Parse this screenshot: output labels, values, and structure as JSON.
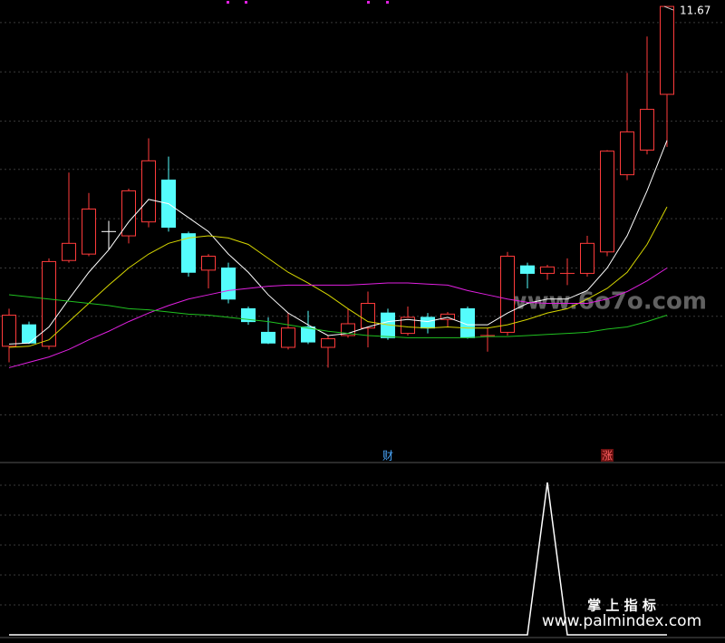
{
  "chart_data": {
    "type": "candlestick",
    "last_price_label": "11.67",
    "ylim": [
      7.5,
      11.73
    ],
    "grid_levels": [
      11.52,
      11.06,
      10.6,
      10.15,
      9.69,
      9.23,
      8.78,
      8.32,
      7.86
    ],
    "up_color": "#ff3b3b",
    "down_color": "#54fcfc",
    "candles": [
      {
        "open": 8.5,
        "high": 8.85,
        "low": 8.35,
        "close": 8.79
      },
      {
        "open": 8.7,
        "high": 8.73,
        "low": 8.52,
        "close": 8.53
      },
      {
        "open": 8.5,
        "high": 9.32,
        "low": 8.47,
        "close": 9.29
      },
      {
        "open": 9.3,
        "high": 10.12,
        "low": 9.28,
        "close": 9.46
      },
      {
        "open": 9.36,
        "high": 9.93,
        "low": 9.34,
        "close": 9.78
      },
      {
        "open": 9.57,
        "high": 9.67,
        "low": 9.4,
        "close": 9.57,
        "color": "#ffffff"
      },
      {
        "open": 9.53,
        "high": 9.97,
        "low": 9.46,
        "close": 9.95
      },
      {
        "open": 9.66,
        "high": 10.44,
        "low": 9.61,
        "close": 10.23
      },
      {
        "open": 10.05,
        "high": 10.27,
        "low": 9.57,
        "close": 9.61
      },
      {
        "open": 9.55,
        "high": 9.57,
        "low": 9.15,
        "close": 9.19
      },
      {
        "open": 9.21,
        "high": 9.36,
        "low": 9.04,
        "close": 9.34
      },
      {
        "open": 9.23,
        "high": 9.28,
        "low": 8.9,
        "close": 8.94
      },
      {
        "open": 8.85,
        "high": 8.87,
        "low": 8.7,
        "close": 8.73
      },
      {
        "open": 8.63,
        "high": 8.77,
        "low": 8.52,
        "close": 8.53
      },
      {
        "open": 8.49,
        "high": 8.81,
        "low": 8.47,
        "close": 8.67
      },
      {
        "open": 8.68,
        "high": 8.83,
        "low": 8.52,
        "close": 8.54
      },
      {
        "open": 8.49,
        "high": 8.6,
        "low": 8.3,
        "close": 8.57
      },
      {
        "open": 8.6,
        "high": 8.85,
        "low": 8.58,
        "close": 8.71
      },
      {
        "open": 8.67,
        "high": 9.01,
        "low": 8.49,
        "close": 8.9
      },
      {
        "open": 8.81,
        "high": 8.85,
        "low": 8.56,
        "close": 8.58
      },
      {
        "open": 8.62,
        "high": 8.87,
        "low": 8.6,
        "close": 8.77
      },
      {
        "open": 8.77,
        "high": 8.81,
        "low": 8.62,
        "close": 8.67
      },
      {
        "open": 8.75,
        "high": 8.82,
        "low": 8.68,
        "close": 8.8
      },
      {
        "open": 8.85,
        "high": 8.87,
        "low": 8.57,
        "close": 8.58
      },
      {
        "open": 8.6,
        "high": 8.67,
        "low": 8.45,
        "close": 8.6
      },
      {
        "open": 8.63,
        "high": 9.38,
        "low": 8.6,
        "close": 9.34
      },
      {
        "open": 9.25,
        "high": 9.28,
        "low": 9.04,
        "close": 9.18
      },
      {
        "open": 9.18,
        "high": 9.26,
        "low": 9.12,
        "close": 9.24
      },
      {
        "open": 9.18,
        "high": 9.32,
        "low": 9.07,
        "close": 9.18
      },
      {
        "open": 9.18,
        "high": 9.53,
        "low": 9.15,
        "close": 9.46
      },
      {
        "open": 9.38,
        "high": 10.33,
        "low": 9.34,
        "close": 10.32
      },
      {
        "open": 10.1,
        "high": 11.05,
        "low": 10.05,
        "close": 10.5
      },
      {
        "open": 10.33,
        "high": 11.39,
        "low": 10.29,
        "close": 10.71
      },
      {
        "open": 10.85,
        "high": 11.67,
        "low": 10.36,
        "close": 11.67
      }
    ],
    "series": [
      {
        "color": "#ffffff",
        "values": [
          8.52,
          8.53,
          8.68,
          8.94,
          9.19,
          9.4,
          9.66,
          9.87,
          9.83,
          9.7,
          9.57,
          9.36,
          9.19,
          8.98,
          8.81,
          8.7,
          8.6,
          8.62,
          8.68,
          8.73,
          8.75,
          8.73,
          8.77,
          8.7,
          8.7,
          8.81,
          8.9,
          8.94,
          8.94,
          9.02,
          9.23,
          9.53,
          9.95,
          10.42
        ]
      },
      {
        "color": "#d6d600",
        "values": [
          8.49,
          8.5,
          8.56,
          8.73,
          8.9,
          9.07,
          9.23,
          9.36,
          9.46,
          9.51,
          9.53,
          9.51,
          9.45,
          9.32,
          9.19,
          9.09,
          8.98,
          8.85,
          8.73,
          8.7,
          8.68,
          8.67,
          8.68,
          8.67,
          8.67,
          8.7,
          8.75,
          8.81,
          8.85,
          8.94,
          9.04,
          9.19,
          9.45,
          9.8
        ]
      },
      {
        "color": "#e020e0",
        "values": [
          8.3,
          8.35,
          8.4,
          8.47,
          8.56,
          8.64,
          8.73,
          8.81,
          8.88,
          8.94,
          8.98,
          9.02,
          9.04,
          9.06,
          9.07,
          9.07,
          9.07,
          9.07,
          9.08,
          9.09,
          9.09,
          9.08,
          9.07,
          9.02,
          8.98,
          8.94,
          8.91,
          8.9,
          8.9,
          8.9,
          8.94,
          9.01,
          9.11,
          9.23
        ]
      },
      {
        "color": "#20c020",
        "values": [
          8.98,
          8.96,
          8.94,
          8.92,
          8.9,
          8.88,
          8.85,
          8.84,
          8.82,
          8.8,
          8.79,
          8.77,
          8.75,
          8.73,
          8.7,
          8.67,
          8.64,
          8.62,
          8.6,
          8.59,
          8.58,
          8.58,
          8.58,
          8.58,
          8.59,
          8.59,
          8.6,
          8.61,
          8.62,
          8.63,
          8.66,
          8.68,
          8.73,
          8.79
        ]
      }
    ],
    "annotations": [
      {
        "text": "财",
        "index": 19
      },
      {
        "text": "涨",
        "index": 30
      }
    ],
    "indicator": {
      "color": "#ffffff",
      "ylim": [
        0,
        1.15
      ],
      "values": [
        0,
        0,
        0,
        0,
        0,
        0,
        0,
        0,
        0,
        0,
        0,
        0,
        0,
        0,
        0,
        0,
        0,
        0,
        0,
        0,
        0,
        0,
        0,
        0,
        0,
        0,
        0,
        1,
        0,
        0,
        0,
        0,
        0,
        0
      ]
    }
  },
  "watermarks": {
    "top": "www.6o7o.com",
    "name": "掌 上 指 标",
    "url": "www.palmindex.com"
  }
}
